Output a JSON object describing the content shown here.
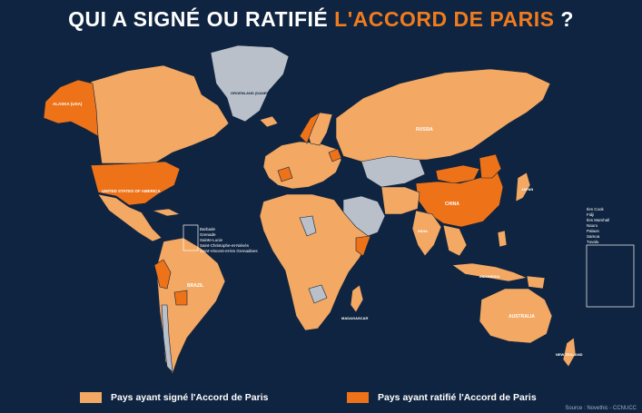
{
  "title": {
    "part1": "QUI A SIGNÉ OU RATIFIÉ ",
    "part2": "L'ACCORD DE PARIS",
    "part3": " ?"
  },
  "colors": {
    "background": "#0f2440",
    "signed": "#f3a863",
    "ratified": "#ee7218",
    "not_signed": "#b9c0c9",
    "border": "#0f2440"
  },
  "legend": {
    "signed": "Pays ayant signé l'Accord de Paris",
    "ratified": "Pays ayant ratifié l'Accord de Paris"
  },
  "source": "Source : Novethic - CCNUCC",
  "map_labels": {
    "alaska": "ALASKA (USA)",
    "greenland": "GROENLAND (DANEMARK)",
    "usa": "UNITED STATES OF AMERICA",
    "russia": "RUSSIA",
    "china": "CHINA",
    "brazil": "BRAZIL",
    "australia": "AUSTRALIA",
    "india": "INDIA",
    "indonesia": "INDONESIA",
    "madagascar": "MADAGASCAR",
    "new_zealand": "NEW ZEALAND",
    "japan": "JAPAN"
  },
  "caribbean_list": [
    "Barbade",
    "Grenade",
    "Sainte-Lucie",
    "Saint-Christophe-et-Niévès",
    "Saint-Vincent-et-les Grenadines"
  ],
  "pacific_list": [
    "Iles Cook",
    "Fidji",
    "Iles Marshall",
    "Nauru",
    "Palaos",
    "Samoa",
    "Tuvalu"
  ]
}
